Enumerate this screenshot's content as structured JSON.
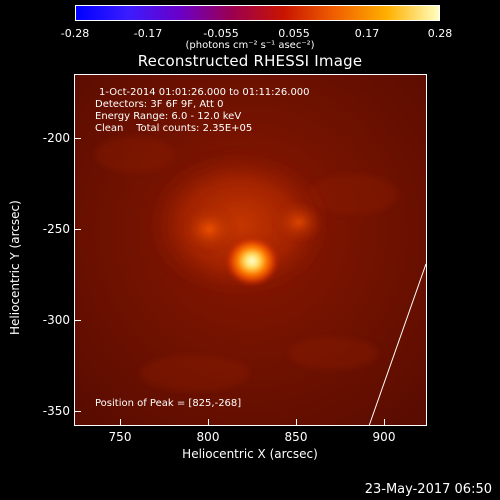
{
  "colorbar": {
    "ticks": [
      "-0.28",
      "-0.17",
      "-0.055",
      "0.055",
      "0.17",
      "0.28"
    ],
    "units": "(photons cm⁻² s⁻¹ asec⁻²)",
    "colormap": [
      "#0000ff",
      "#3b1cff",
      "#6a00c8",
      "#9b0050",
      "#c81400",
      "#f06000",
      "#ffb000",
      "#ffffc0"
    ]
  },
  "title": "Reconstructed RHESSI Image",
  "annotations": {
    "line1": "1-Oct-2014 01:01:26.000 to 01:11:26.000",
    "line2": "Detectors: 3F 6F 9F, Att 0",
    "line3": "Energy Range: 6.0 - 12.0 keV",
    "line4": "Clean    Total counts: 2.35E+05",
    "peak": "Position of Peak = [825,-268]"
  },
  "axes": {
    "xlabel": "Heliocentric X (arcsec)",
    "ylabel": "Heliocentric Y (arcsec)",
    "xticks": [
      "750",
      "800",
      "850",
      "900"
    ],
    "yticks": [
      "-200",
      "-250",
      "-300",
      "-350"
    ],
    "xlim": [
      727,
      918
    ],
    "ylim": [
      -357,
      -168
    ]
  },
  "image_data": {
    "peak_position": [
      825,
      -268
    ],
    "background_color": "#6a0e00",
    "source_colors": [
      "#ffffd8",
      "#ff9a10",
      "#e04000",
      "#a01c00"
    ]
  },
  "timestamp": "23-May-2017 06:50"
}
